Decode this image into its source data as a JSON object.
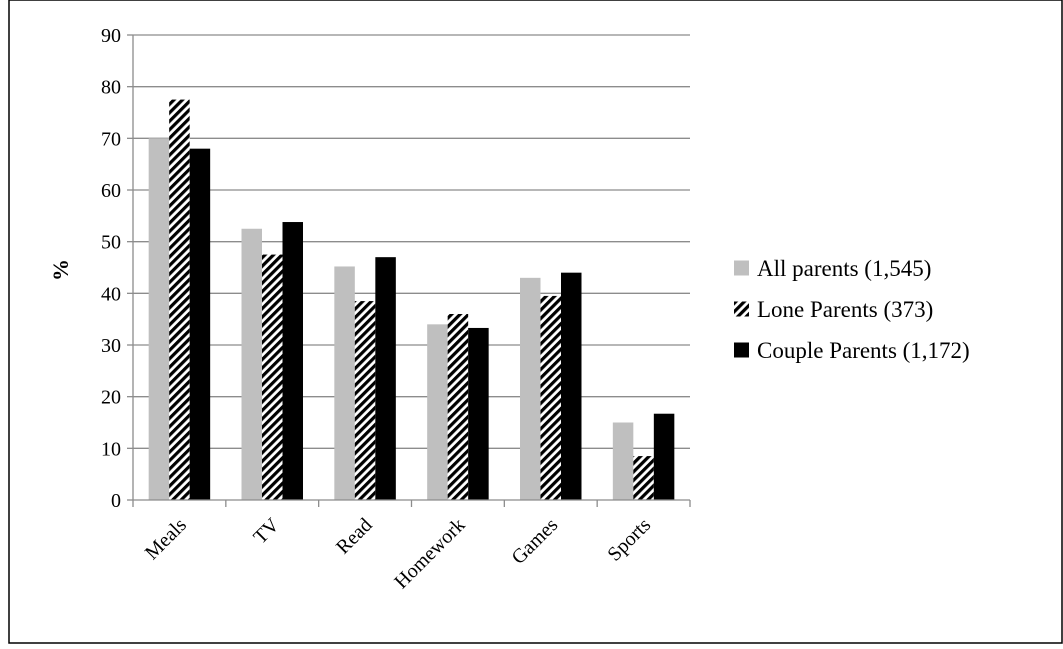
{
  "chart_data": {
    "type": "bar",
    "title": "",
    "xlabel": "",
    "ylabel": "%",
    "ylim": [
      0,
      90
    ],
    "yticks": [
      0,
      10,
      20,
      30,
      40,
      50,
      60,
      70,
      80,
      90
    ],
    "grid": true,
    "legend_position": "right",
    "categories": [
      "Meals",
      "TV",
      "Read",
      "Homework",
      "Games",
      "Sports"
    ],
    "series": [
      {
        "name": "All parents (1,545)",
        "values": [
          70,
          52.5,
          45.2,
          34,
          43,
          15
        ],
        "color": "#bfbfbf",
        "pattern": "solid"
      },
      {
        "name": "Lone Parents (373)",
        "values": [
          77.5,
          47.5,
          38.5,
          36,
          39.5,
          8.5
        ],
        "color": "#000000",
        "pattern": "diagonal-stripes"
      },
      {
        "name": "Couple Parents (1,172)",
        "values": [
          68,
          53.8,
          47,
          33.3,
          44,
          16.7
        ],
        "color": "#000000",
        "pattern": "solid"
      }
    ]
  }
}
